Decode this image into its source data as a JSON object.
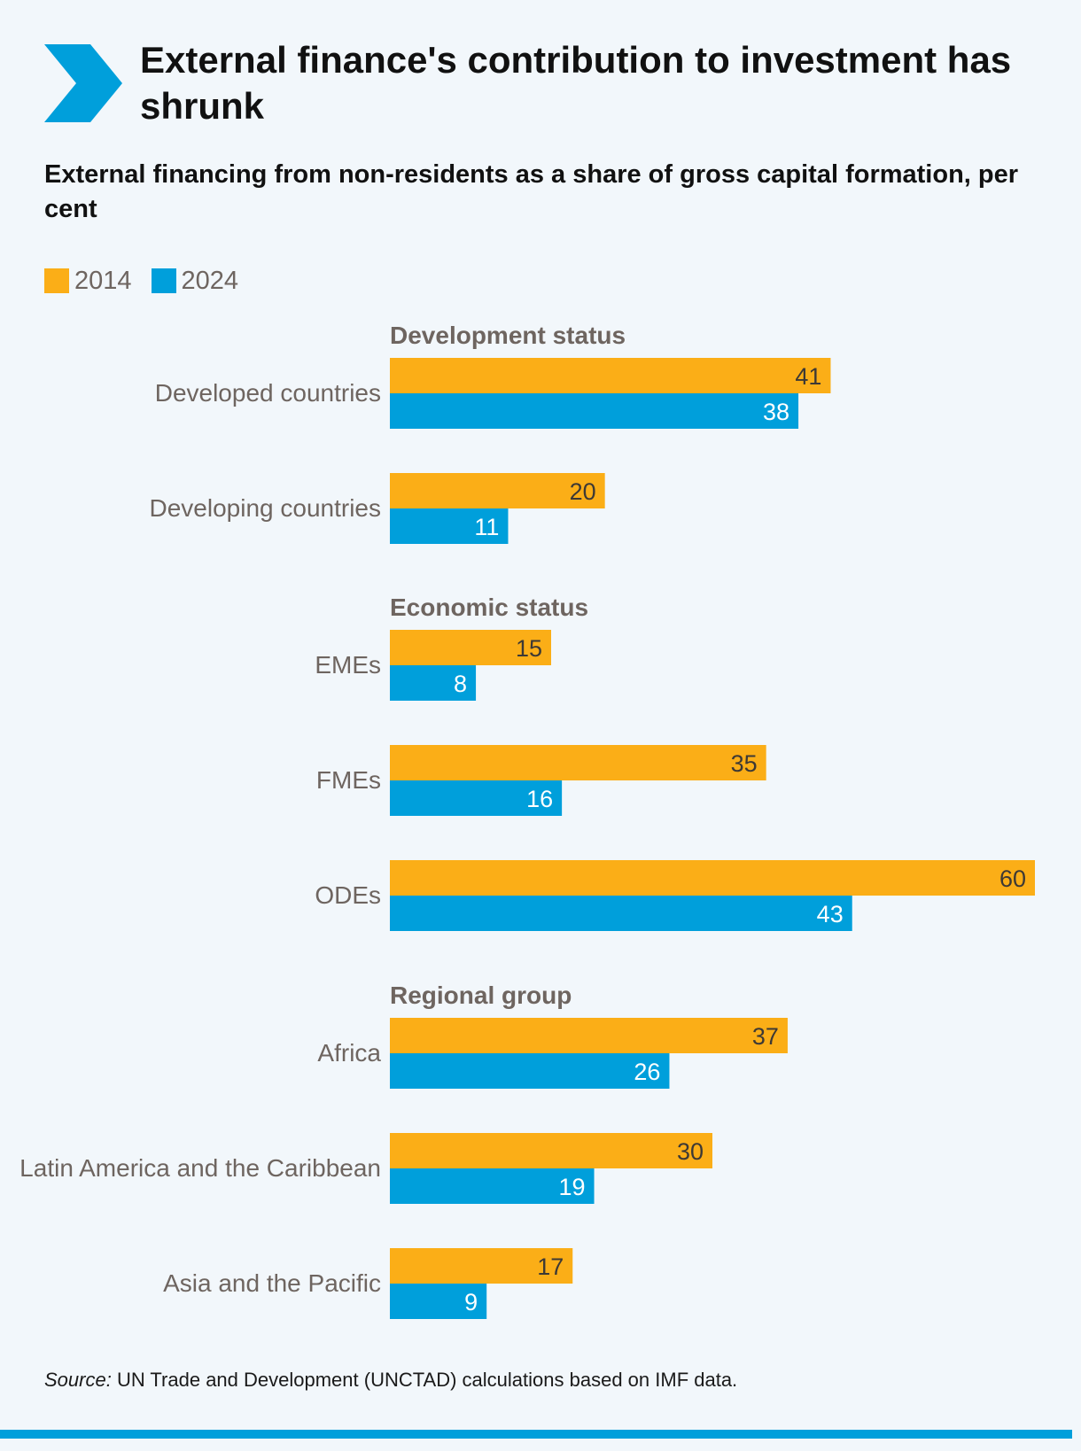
{
  "header": {
    "title": "External finance's contribution to investment has shrunk",
    "subtitle": "External financing from non-residents as a share of gross capital formation, per cent"
  },
  "icons": {
    "header_marker": "chevron-right-icon"
  },
  "colors": {
    "series_2014": "#fbae17",
    "series_2024": "#009fdb",
    "accent": "#009fdb",
    "label_text": "#6e6560",
    "value_text_2014": "#3d3935",
    "value_text_2024": "#ffffff"
  },
  "legend": {
    "items": [
      {
        "label": "2014"
      },
      {
        "label": "2024"
      }
    ]
  },
  "source": {
    "prefix": "Source:",
    "text": " UN Trade and Development (UNCTAD) calculations based on IMF data."
  },
  "chart_data": {
    "type": "bar",
    "orientation": "horizontal",
    "xlim": [
      0,
      60
    ],
    "grid": false,
    "legend_position": "top-left",
    "series": [
      {
        "name": "2014"
      },
      {
        "name": "2024"
      }
    ],
    "groups": [
      {
        "title": "Development status",
        "categories": [
          {
            "label": "Developed countries",
            "values": [
              41,
              38
            ]
          },
          {
            "label": "Developing countries",
            "values": [
              20,
              11
            ]
          }
        ]
      },
      {
        "title": "Economic status",
        "categories": [
          {
            "label": "EMEs",
            "values": [
              15,
              8
            ]
          },
          {
            "label": "FMEs",
            "values": [
              35,
              16
            ]
          },
          {
            "label": "ODEs",
            "values": [
              60,
              43
            ]
          }
        ]
      },
      {
        "title": "Regional group",
        "categories": [
          {
            "label": "Africa",
            "values": [
              37,
              26
            ]
          },
          {
            "label": "Latin America and the Caribbean",
            "values": [
              30,
              19
            ]
          },
          {
            "label": "Asia and the Pacific",
            "values": [
              17,
              9
            ]
          }
        ]
      }
    ]
  }
}
